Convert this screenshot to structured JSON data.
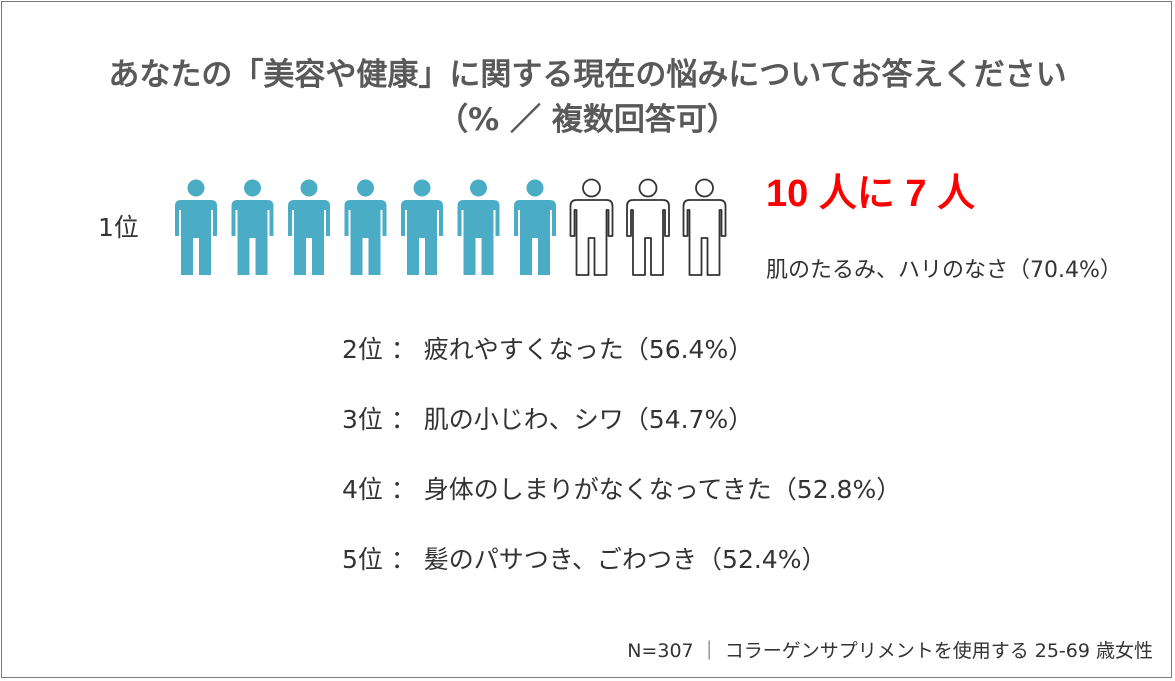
{
  "title": {
    "line1": "あなたの「美容や健康」に関する現在の悩みについてお答えください",
    "line2": "（% ／ 複数回答可）"
  },
  "rank1": {
    "label": "1位",
    "headline": "10 人に 7 人",
    "text": "肌のたるみ、ハリのなさ（70.4%）"
  },
  "ranks": [
    {
      "label": "2位 ： 疲れやすくなった（56.4%）"
    },
    {
      "label": "3位 ： 肌の小じわ、シワ（54.7%）"
    },
    {
      "label": "4位 ： 身体のしまりがなくなってきた（52.8%）"
    },
    {
      "label": "5位 ： 髪のパサつき、ごわつき（52.4%）"
    }
  ],
  "footer": "N=307 ｜ コラーゲンサプリメントを使用する 25-69 歳女性",
  "chart_data": {
    "type": "table",
    "title": "あなたの「美容や健康」に関する現在の悩みについてお答えください",
    "subtitle": "（% ／ 複数回答可）",
    "categories": [
      "肌のたるみ、ハリのなさ",
      "疲れやすくなった",
      "肌の小じわ、シワ",
      "身体のしまりがなくなってきた",
      "髪のパサつき、ごわつき"
    ],
    "values": [
      70.4,
      56.4,
      54.7,
      52.8,
      52.4
    ],
    "ranks": [
      1,
      2,
      3,
      4,
      5
    ],
    "pictogram": {
      "total": 10,
      "filled": 7
    },
    "colors": {
      "filled": "#4bacc6",
      "outline": "#333333",
      "accent": "#ff0000"
    }
  }
}
